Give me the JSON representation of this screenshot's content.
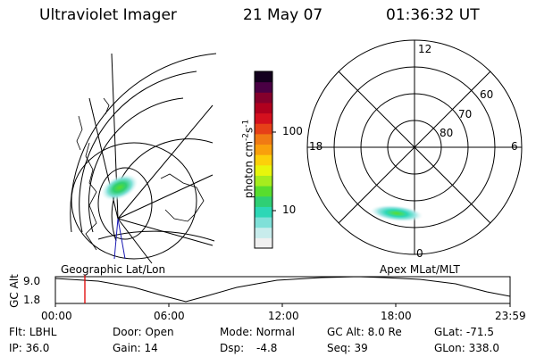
{
  "header": {
    "instrument": "Ultraviolet Imager",
    "date": "21 May 07",
    "time": "01:36:32 UT"
  },
  "colorbar": {
    "unit_prefix": "photon cm",
    "unit_exp1": "-2",
    "unit_mid": "s",
    "unit_exp2": "-1",
    "tick_100": "100",
    "tick_10": "10",
    "colors": [
      "#f0f0f0",
      "#c8ecec",
      "#7fe0d8",
      "#2dd7b6",
      "#2fcf74",
      "#58dd2e",
      "#a6ec1e",
      "#e8f50c",
      "#fcd00a",
      "#f9a00c",
      "#f07a14",
      "#e64018",
      "#d4101e",
      "#b0001e",
      "#84002c",
      "#4a0044",
      "#14001e"
    ]
  },
  "left_panel": {
    "label": "Geographic Lat/Lon"
  },
  "right_panel": {
    "label": "Apex MLat/MLT",
    "mlt_labels": {
      "top": "12",
      "left": "18",
      "right": "6",
      "bottom": "0"
    },
    "lat_labels": [
      "60",
      "70",
      "80"
    ]
  },
  "altitude_plot": {
    "ylabel": "GC Alt",
    "yticks": [
      "9.0",
      "1.8"
    ],
    "xticks": [
      "00:00",
      "06:00",
      "12:00",
      "18:00",
      "23:59"
    ],
    "marker_time": "01:36:32"
  },
  "info": {
    "flt": {
      "label": "Flt:",
      "value": "LBHL"
    },
    "ip": {
      "label": "IP:",
      "value": "36.0"
    },
    "door": {
      "label": "Door:",
      "value": "Open"
    },
    "gain": {
      "label": "Gain:",
      "value": "14"
    },
    "mode": {
      "label": "Mode:",
      "value": "Normal"
    },
    "dsp": {
      "label": "Dsp:",
      "value": "-4.8"
    },
    "gcalt": {
      "label": "GC Alt:",
      "value": "8.0 Re"
    },
    "seq": {
      "label": "Seq:",
      "value": "39"
    },
    "glat": {
      "label": "GLat:",
      "value": "-71.5"
    },
    "glon": {
      "label": "GLon:",
      "value": "338.0"
    }
  }
}
